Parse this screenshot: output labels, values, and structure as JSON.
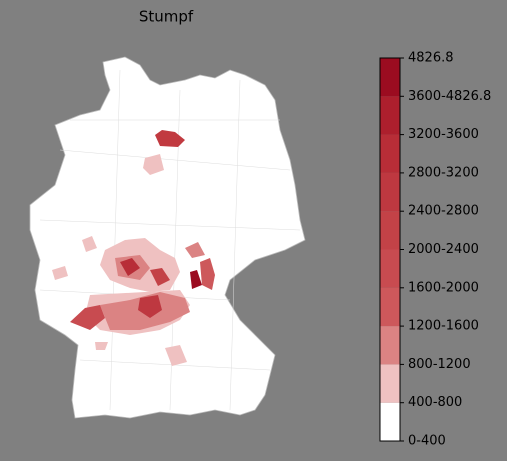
{
  "title": "Stumpf",
  "legend": {
    "labels": [
      "0-400",
      "400-800",
      "800-1200",
      "1200-1600",
      "1600-2000",
      "2000-2400",
      "2400-2800",
      "2800-3200",
      "3200-3600",
      "3600-4826.8",
      "4826.8"
    ],
    "colors": [
      "#ffffff",
      "#efc1c1",
      "#db8383",
      "#cd585b",
      "#c84b50",
      "#c34247",
      "#be3840",
      "#b82d37",
      "#ad1f2d",
      "#9b0c20"
    ]
  }
}
